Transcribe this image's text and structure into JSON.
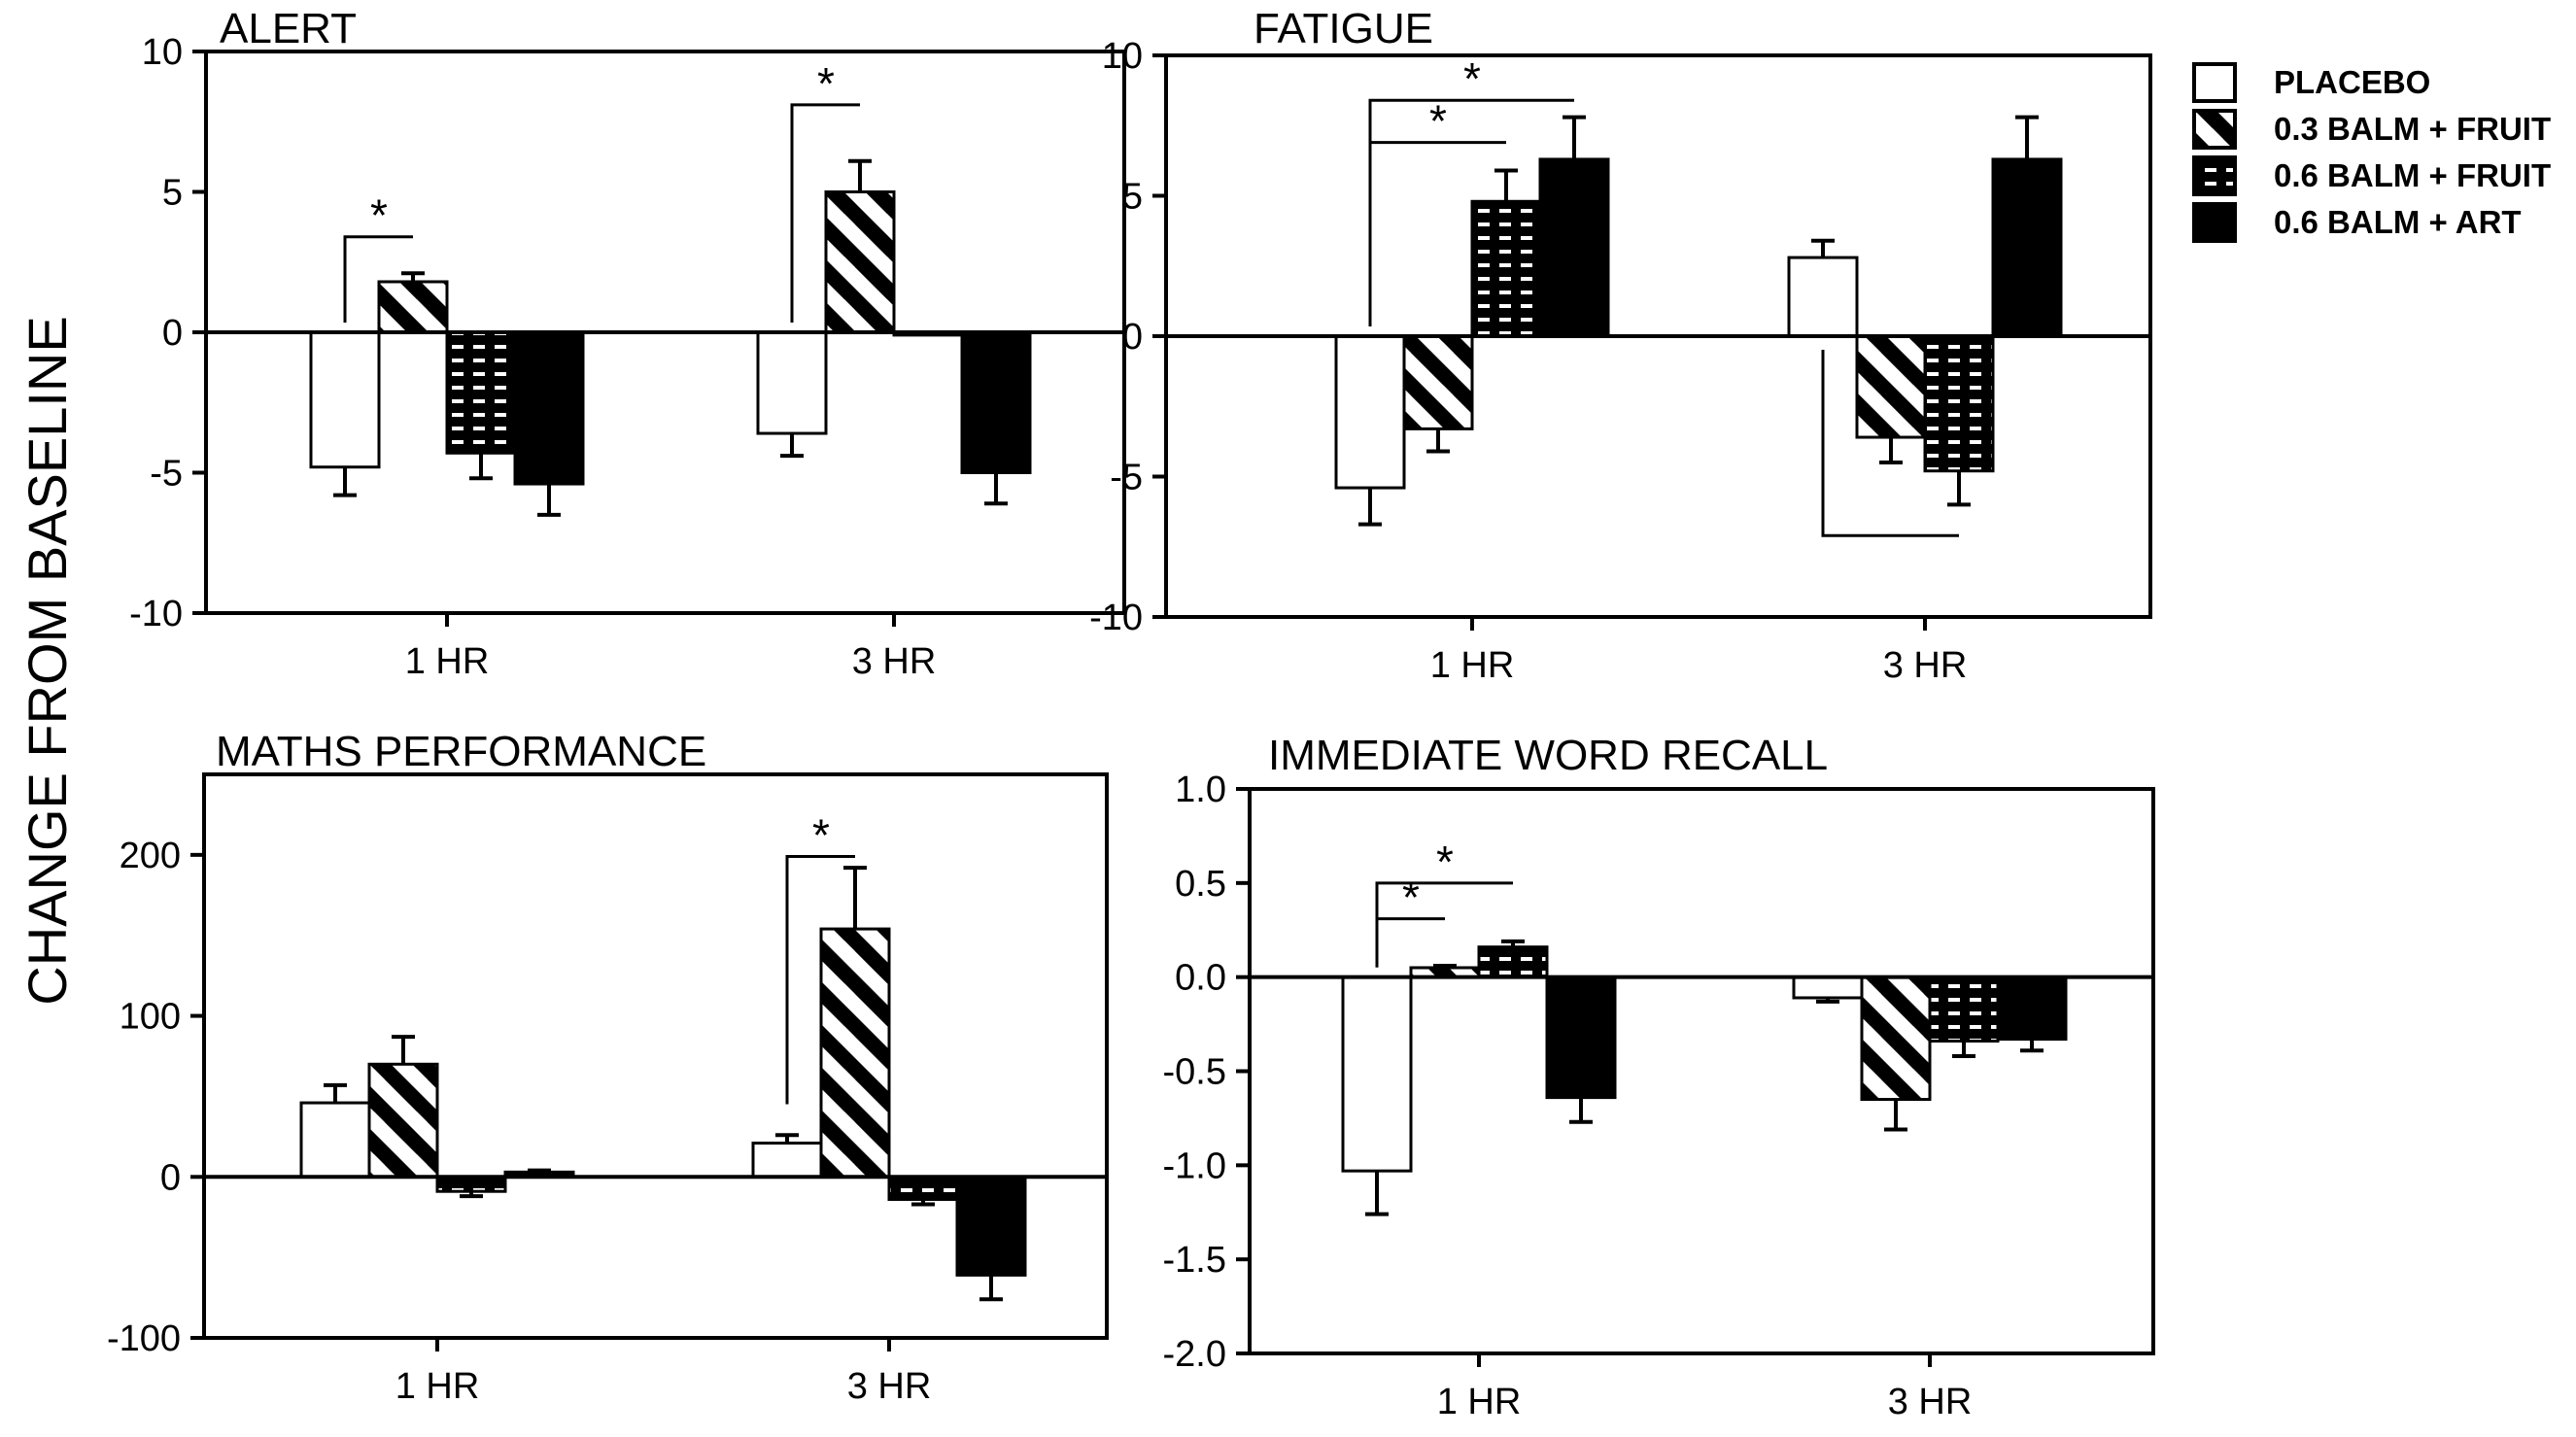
{
  "figure": {
    "ylabel": "CHANGE FROM BASELINE",
    "legend_placement": "top-right",
    "legend": [
      {
        "name": "PLACEBO",
        "fill": "white"
      },
      {
        "name": "0.3 BALM + FRUIT",
        "fill": "diagonal"
      },
      {
        "name": "0.6 BALM + FRUIT",
        "fill": "dashes"
      },
      {
        "name": "0.6 BALM + ART",
        "fill": "black"
      }
    ],
    "colors": {
      "ink": "#000000",
      "background": "#ffffff"
    }
  },
  "chart_data": [
    {
      "type": "bar",
      "title": "ALERT",
      "categories": [
        "1 HR",
        "3 HR"
      ],
      "ylim": [
        -10,
        10
      ],
      "yticks": [
        {
          "v": 10,
          "label": "10"
        },
        {
          "v": 5,
          "label": "5"
        },
        {
          "v": 0,
          "label": "0"
        },
        {
          "v": -5,
          "label": "-5"
        },
        {
          "v": -10,
          "label": "-10"
        }
      ],
      "series": [
        {
          "name": "PLACEBO",
          "values": [
            -4.8,
            -3.6
          ],
          "errors": [
            1.0,
            0.8
          ]
        },
        {
          "name": "0.3 BALM + FRUIT",
          "values": [
            1.8,
            5.0
          ],
          "errors": [
            0.3,
            1.1
          ]
        },
        {
          "name": "0.6 BALM + FRUIT",
          "values": [
            -4.3,
            -0.1
          ],
          "errors": [
            0.9,
            0.0
          ]
        },
        {
          "name": "0.6 BALM + ART",
          "values": [
            -5.4,
            -5.0
          ],
          "errors": [
            1.1,
            1.1
          ]
        }
      ],
      "annotations": [
        {
          "text": "*",
          "cat": 0,
          "from": 0,
          "to": 1,
          "y": 3.4
        },
        {
          "text": "*",
          "cat": 1,
          "from": 0,
          "to": 1,
          "y": 8.1
        }
      ]
    },
    {
      "type": "bar",
      "title": "FATIGUE",
      "categories": [
        "1 HR",
        "3 HR"
      ],
      "ylim": [
        -10,
        10
      ],
      "yticks": [
        {
          "v": 10,
          "label": "10"
        },
        {
          "v": 5,
          "label": "5"
        },
        {
          "v": 0,
          "label": "0"
        },
        {
          "v": -5,
          "label": "-5"
        },
        {
          "v": -10,
          "label": "-10"
        }
      ],
      "series": [
        {
          "name": "PLACEBO",
          "values": [
            -5.4,
            2.8
          ],
          "errors": [
            1.3,
            0.6
          ]
        },
        {
          "name": "0.3 BALM + FRUIT",
          "values": [
            -3.3,
            -3.6
          ],
          "errors": [
            0.8,
            0.9
          ]
        },
        {
          "name": "0.6 BALM + FRUIT",
          "values": [
            4.8,
            -4.8
          ],
          "errors": [
            1.1,
            1.2
          ]
        },
        {
          "name": "0.6 BALM + ART",
          "values": [
            6.3,
            6.3
          ],
          "errors": [
            1.5,
            1.5
          ]
        }
      ],
      "annotations": [
        {
          "text": "*",
          "cat": 0,
          "from": 0,
          "to": 3,
          "y": 8.4
        },
        {
          "text": "*",
          "cat": 0,
          "from": 0,
          "to": 2,
          "y": 6.9
        },
        {
          "text": "",
          "cat": 1,
          "from": 0,
          "to": 2,
          "y": -7.1,
          "below": true
        }
      ]
    },
    {
      "type": "bar",
      "title": "MATHS PERFORMANCE",
      "categories": [
        "1 HR",
        "3 HR"
      ],
      "ylim": [
        -100,
        250
      ],
      "yticks": [
        {
          "v": 200,
          "label": "200"
        },
        {
          "v": 100,
          "label": "100"
        },
        {
          "v": 0,
          "label": "0"
        },
        {
          "v": -100,
          "label": "-100"
        }
      ],
      "series": [
        {
          "name": "PLACEBO",
          "values": [
            46,
            21
          ],
          "errors": [
            11,
            5
          ]
        },
        {
          "name": "0.3 BALM + FRUIT",
          "values": [
            70,
            154
          ],
          "errors": [
            17,
            38
          ]
        },
        {
          "name": "0.6 BALM + FRUIT",
          "values": [
            -9,
            -14
          ],
          "errors": [
            3,
            3
          ]
        },
        {
          "name": "0.6 BALM + ART",
          "values": [
            3,
            -61
          ],
          "errors": [
            1,
            15
          ]
        }
      ],
      "annotations": [
        {
          "text": "*",
          "cat": 1,
          "from": 0,
          "to": 1,
          "y": 199
        }
      ]
    },
    {
      "type": "bar",
      "title": "IMMEDIATE WORD RECALL",
      "categories": [
        "1 HR",
        "3 HR"
      ],
      "ylim": [
        -2.0,
        1.0
      ],
      "yticks": [
        {
          "v": 1.0,
          "label": "1.0"
        },
        {
          "v": 0.5,
          "label": "0.5"
        },
        {
          "v": 0.0,
          "label": "0.0"
        },
        {
          "v": -0.5,
          "label": "-0.5"
        },
        {
          "v": -1.0,
          "label": "-1.0"
        },
        {
          "v": -1.5,
          "label": "-1.5"
        },
        {
          "v": -2.0,
          "label": "-2.0"
        }
      ],
      "series": [
        {
          "name": "PLACEBO",
          "values": [
            -1.03,
            -0.11
          ],
          "errors": [
            0.23,
            0.02
          ]
        },
        {
          "name": "0.3 BALM + FRUIT",
          "values": [
            0.05,
            -0.65
          ],
          "errors": [
            0.01,
            0.16
          ]
        },
        {
          "name": "0.6 BALM + FRUIT",
          "values": [
            0.16,
            -0.34
          ],
          "errors": [
            0.03,
            0.08
          ]
        },
        {
          "name": "0.6 BALM + ART",
          "values": [
            -0.64,
            -0.33
          ],
          "errors": [
            0.13,
            0.06
          ]
        }
      ],
      "annotations": [
        {
          "text": "*",
          "cat": 0,
          "from": 0,
          "to": 2,
          "y": 0.5
        },
        {
          "text": "*",
          "cat": 0,
          "from": 0,
          "to": 1,
          "y": 0.31
        }
      ]
    }
  ]
}
